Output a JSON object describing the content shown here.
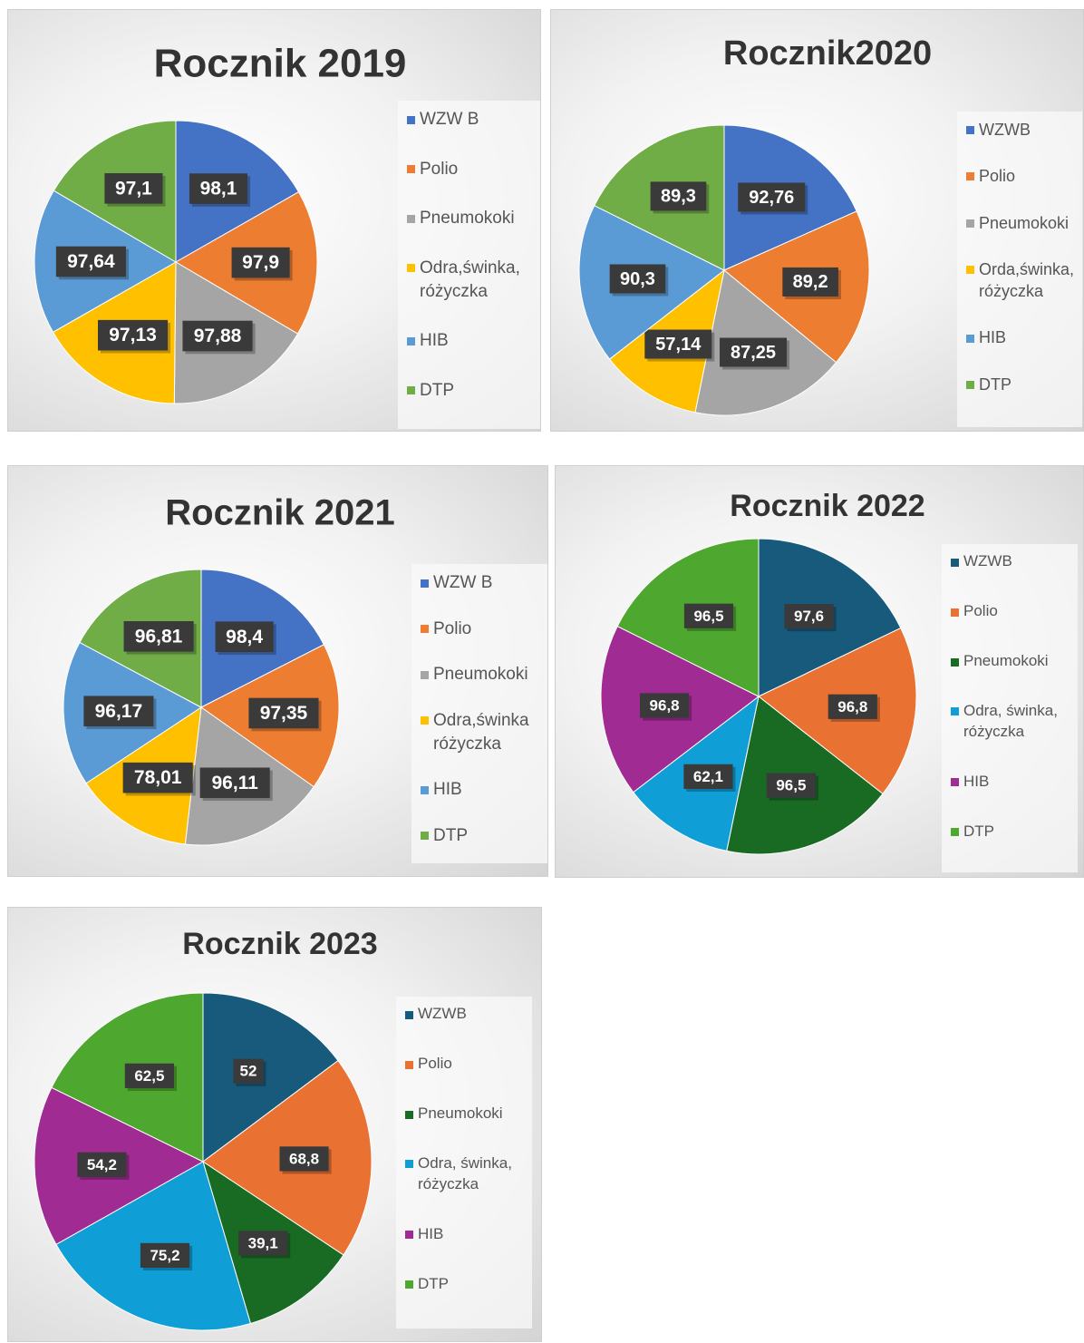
{
  "chart_data": [
    {
      "type": "pie",
      "title": "Rocznik 2019",
      "categories": [
        "WZW B",
        "Polio",
        "Pneumokoki",
        "Odra,świnka, różyczka",
        "HIB",
        "DTP"
      ],
      "values": [
        98.1,
        97.9,
        97.88,
        97.13,
        97.64,
        97.1
      ],
      "value_labels": [
        "98,1",
        "97,9",
        "97,88",
        "97,13",
        "97,64",
        "97,1"
      ],
      "colors": [
        "#4472c4",
        "#ed7d31",
        "#a5a5a5",
        "#ffc000",
        "#5b9bd5",
        "#70ad47"
      ]
    },
    {
      "type": "pie",
      "title": "Rocznik2020",
      "categories": [
        "WZWB",
        "Polio",
        "Pneumokoki",
        "Orda,świnka, różyczka",
        "HIB",
        "DTP"
      ],
      "values": [
        92.76,
        89.2,
        87.25,
        57.14,
        90.3,
        89.3
      ],
      "value_labels": [
        "92,76",
        "89,2",
        "87,25",
        "57,14",
        "90,3",
        "89,3"
      ],
      "colors": [
        "#4472c4",
        "#ed7d31",
        "#a5a5a5",
        "#ffc000",
        "#5b9bd5",
        "#70ad47"
      ]
    },
    {
      "type": "pie",
      "title": "Rocznik 2021",
      "categories": [
        "WZW B",
        "Polio",
        "Pneumokoki",
        "Odra,świnka różyczka",
        "HIB",
        "DTP"
      ],
      "values": [
        98.4,
        97.35,
        96.11,
        78.01,
        96.17,
        96.81
      ],
      "value_labels": [
        "98,4",
        "97,35",
        "96,11",
        "78,01",
        "96,17",
        "96,81"
      ],
      "colors": [
        "#4472c4",
        "#ed7d31",
        "#a5a5a5",
        "#ffc000",
        "#5b9bd5",
        "#70ad47"
      ]
    },
    {
      "type": "pie",
      "title": "Rocznik 2022",
      "categories": [
        "WZWB",
        "Polio",
        "Pneumokoki",
        "Odra, świnka, różyczka",
        "HIB",
        "DTP"
      ],
      "values": [
        97.6,
        96.8,
        96.5,
        62.1,
        96.8,
        96.5
      ],
      "value_labels": [
        "97,6",
        "96,8",
        "96,5",
        "62,1",
        "96,8",
        "96,5"
      ],
      "colors": [
        "#175a7c",
        "#e97132",
        "#196b24",
        "#0f9ed5",
        "#a02b93",
        "#4ea72e"
      ]
    },
    {
      "type": "pie",
      "title": "Rocznik 2023",
      "categories": [
        "WZWB",
        "Polio",
        "Pneumokoki",
        "Odra, świnka, różyczka",
        "HIB",
        "DTP"
      ],
      "values": [
        52,
        68.8,
        39.1,
        75.2,
        54.2,
        62.5
      ],
      "value_labels": [
        "52",
        "68,8",
        "39,1",
        "75,2",
        "54,2",
        "62,5"
      ],
      "colors": [
        "#175a7c",
        "#e97132",
        "#196b24",
        "#0f9ed5",
        "#a02b93",
        "#4ea72e"
      ]
    }
  ]
}
